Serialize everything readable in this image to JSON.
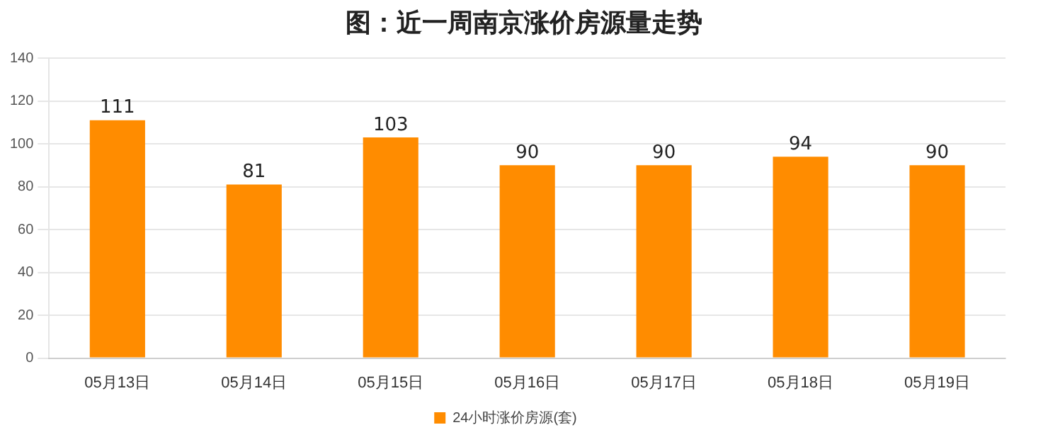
{
  "chart_data": {
    "type": "bar",
    "title": "图：近一周南京涨价房源量走势",
    "categories": [
      "05月13日",
      "05月14日",
      "05月15日",
      "05月16日",
      "05月17日",
      "05月18日",
      "05月19日"
    ],
    "series": [
      {
        "name": "24小时涨价房源(套)",
        "color": "#ff8c00",
        "values": [
          111,
          81,
          103,
          90,
          90,
          94,
          90
        ]
      }
    ],
    "ylim": [
      0,
      140
    ],
    "yticks": [
      0,
      20,
      40,
      60,
      80,
      100,
      120,
      140
    ],
    "grid": "y",
    "legend": "bottom",
    "data_labels": true
  }
}
